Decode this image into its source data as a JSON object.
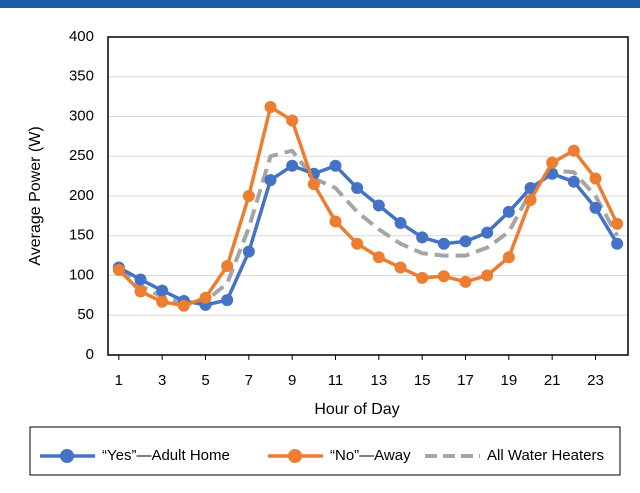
{
  "chart_data": {
    "type": "line",
    "x_label": "Hour of Day",
    "y_label": "Average Power (W)",
    "x": [
      1,
      2,
      3,
      4,
      5,
      6,
      7,
      8,
      9,
      10,
      11,
      12,
      13,
      14,
      15,
      16,
      17,
      18,
      19,
      20,
      21,
      22,
      23,
      24
    ],
    "xlim": [
      0.5,
      24.5
    ],
    "xticks": [
      1,
      3,
      5,
      7,
      9,
      11,
      13,
      15,
      17,
      19,
      21,
      23
    ],
    "ylim": [
      0,
      400
    ],
    "yticks": [
      0,
      50,
      100,
      150,
      200,
      250,
      300,
      350,
      400
    ],
    "grid": true,
    "legend": "bottom",
    "series": [
      {
        "name": "“Yes”—Adult Home",
        "color": "#4472c4",
        "marker": true,
        "dashed": false,
        "values": [
          110,
          95,
          81,
          68,
          63,
          69,
          130,
          220,
          238,
          228,
          238,
          210,
          188,
          166,
          148,
          140,
          143,
          154,
          180,
          210,
          228,
          218,
          185,
          140
        ]
      },
      {
        "name": "“No”—Away",
        "color": "#ed7d31",
        "marker": true,
        "dashed": false,
        "values": [
          107,
          80,
          67,
          62,
          72,
          112,
          200,
          312,
          295,
          215,
          168,
          140,
          123,
          110,
          97,
          99,
          92,
          100,
          123,
          195,
          242,
          257,
          222,
          165
        ]
      },
      {
        "name": "All Water Heaters",
        "color": "#a5a5a5",
        "marker": false,
        "dashed": true,
        "values": [
          108,
          87,
          73,
          65,
          68,
          90,
          160,
          250,
          257,
          222,
          210,
          180,
          158,
          140,
          128,
          125,
          125,
          135,
          155,
          205,
          232,
          230,
          200,
          150
        ]
      }
    ]
  }
}
